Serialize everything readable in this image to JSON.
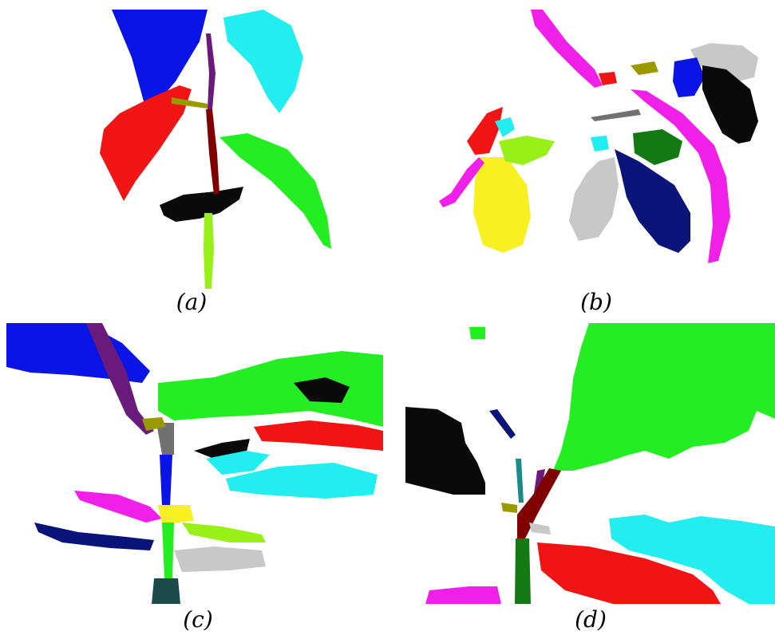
{
  "captions": {
    "a": "(a)",
    "b": "(b)",
    "c": "(c)",
    "d": "(d)"
  },
  "palette": {
    "blue": "#0a14e6",
    "cyan": "#22eef0",
    "red": "#f01414",
    "green": "#22ee22",
    "black": "#0a0a0a",
    "magenta": "#f020e8",
    "yellow": "#f8f020",
    "navy": "#0a1478",
    "gray": "#c8c8c8",
    "darkgray": "#707070",
    "maroon": "#800000",
    "olive": "#9a9a00",
    "purple": "#6a1a7a",
    "lime": "#98f018",
    "darkgreen": "#137a13",
    "teal": "#1a8a8a",
    "slate": "#1a4a4a"
  }
}
